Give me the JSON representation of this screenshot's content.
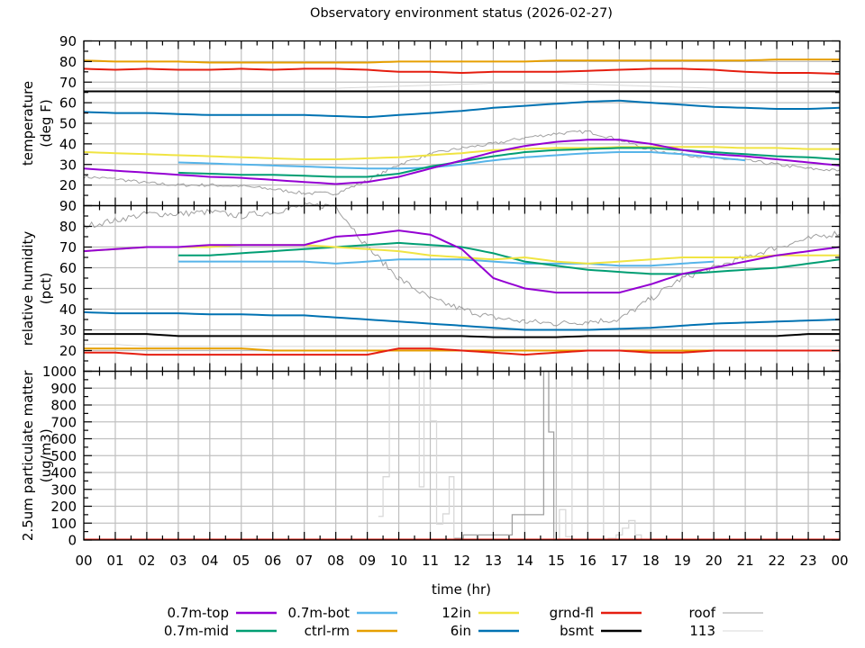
{
  "chart_data": {
    "type": "line",
    "title": "Observatory environment status (2026-02-27)",
    "xlabel": "time (hr)",
    "x_ticks": [
      "00",
      "01",
      "02",
      "03",
      "04",
      "05",
      "06",
      "07",
      "08",
      "09",
      "10",
      "11",
      "12",
      "13",
      "14",
      "15",
      "16",
      "17",
      "18",
      "19",
      "20",
      "21",
      "22",
      "23",
      "00"
    ],
    "xlim": [
      0,
      24
    ],
    "grid": true,
    "legend_placement": "bottom",
    "colors": {
      "0.7m-top": "#9400d3",
      "0.7m-mid": "#009e73",
      "0.7m-bot": "#56b4e9",
      "ctrl-rm": "#e69f00",
      "12in": "#f0e442",
      "6in": "#0072b2",
      "grnd-fl": "#e51e10",
      "bsmt": "#000000",
      "roof": "#a0a0a0",
      "113": "#d8d8d8"
    },
    "legend": [
      [
        "0.7m-top",
        "0.7m-mid"
      ],
      [
        "0.7m-bot",
        "ctrl-rm"
      ],
      [
        "12in",
        "6in"
      ],
      [
        "grnd-fl",
        "bsmt"
      ],
      [
        "roof",
        "113"
      ]
    ],
    "panels": [
      {
        "ylabel": [
          "temperature",
          "(deg F)"
        ],
        "ylim": [
          10,
          90
        ],
        "y_ticks": [
          10,
          20,
          30,
          40,
          50,
          60,
          70,
          80,
          90
        ],
        "tick_labels": [
          "20",
          "30",
          "40",
          "50",
          "60",
          "70",
          "80",
          "90"
        ],
        "x": [
          0,
          1,
          2,
          3,
          4,
          5,
          6,
          7,
          8,
          9,
          10,
          11,
          12,
          13,
          14,
          15,
          16,
          17,
          18,
          19,
          20,
          21,
          22,
          23,
          24
        ],
        "series": [
          {
            "name": "113",
            "values": [
              67,
              67,
              67,
              67,
              67,
              67,
              67,
              67,
              67,
              67.5,
              68,
              68.5,
              69,
              69.5,
              69.5,
              69.5,
              69,
              68.5,
              68,
              67.5,
              67,
              67,
              67,
              67,
              67
            ]
          },
          {
            "name": "ctrl-rm",
            "values": [
              80.5,
              80,
              80,
              80,
              79.5,
              79.5,
              79.5,
              79.5,
              79.5,
              79.5,
              80,
              80,
              80,
              80,
              80,
              80.5,
              80.5,
              80.5,
              80.5,
              80.5,
              80.5,
              80.5,
              81,
              81,
              81
            ]
          },
          {
            "name": "grnd-fl",
            "values": [
              76.5,
              76,
              76.5,
              76,
              76,
              76.5,
              76,
              76.5,
              76.5,
              76,
              75,
              75,
              74.5,
              75,
              75,
              75,
              75.5,
              76,
              76.5,
              76.5,
              76,
              75,
              74.5,
              74.5,
              74
            ]
          },
          {
            "name": "bsmt",
            "values": [
              65.5,
              65.5,
              65.5,
              65.5,
              65.5,
              65.5,
              65.5,
              65.5,
              65.5,
              65.5,
              65.5,
              65.5,
              65.5,
              65.5,
              65.5,
              65.5,
              65.5,
              65.5,
              65.5,
              65.5,
              65.5,
              65.5,
              65.5,
              65.5,
              65.5
            ]
          },
          {
            "name": "6in",
            "values": [
              55.5,
              55,
              55,
              54.5,
              54,
              54,
              54,
              54,
              53.5,
              53,
              54,
              55,
              56,
              57.5,
              58.5,
              59.5,
              60.5,
              61,
              60,
              59,
              58,
              57.5,
              57,
              57,
              57.5
            ]
          },
          {
            "name": "roof",
            "values": [
              24,
              23,
              21,
              20,
              20,
              19.5,
              18,
              16,
              16,
              22,
              30,
              35,
              38,
              40,
              43,
              45,
              46,
              42,
              37,
              35,
              33,
              32,
              30,
              28,
              27
            ]
          },
          {
            "name": "12in",
            "values": [
              36,
              35.5,
              35,
              34.5,
              34,
              33.5,
              33,
              32.5,
              32.5,
              33,
              33.5,
              34.5,
              35.5,
              37,
              37.5,
              38,
              38,
              38.5,
              38.5,
              38.5,
              38.5,
              38,
              38,
              37.5,
              37.5
            ]
          },
          {
            "name": "0.7m-bot",
            "values": [
              null,
              null,
              null,
              31,
              30.5,
              30,
              29.5,
              29,
              28.5,
              28,
              28,
              28.5,
              30,
              32,
              33.5,
              34.5,
              35.5,
              36,
              36,
              35,
              33.5,
              32,
              null,
              null,
              null
            ]
          },
          {
            "name": "0.7m-mid",
            "values": [
              null,
              null,
              null,
              26,
              25.5,
              25,
              25,
              24.5,
              24,
              24,
              25.5,
              29,
              31.5,
              34,
              36,
              37,
              37.5,
              38,
              38,
              37,
              36,
              35,
              34,
              33.5,
              32.5
            ]
          },
          {
            "name": "0.7m-top",
            "values": [
              28,
              27,
              26,
              25,
              24,
              23.5,
              22.5,
              21.5,
              20.5,
              21.5,
              24,
              28,
              32,
              36,
              39,
              41,
              42,
              42,
              40,
              37,
              35,
              34,
              32.5,
              31,
              29.5
            ]
          }
        ]
      },
      {
        "ylabel": [
          "relative humidity",
          "(pct)"
        ],
        "ylim": [
          10,
          90
        ],
        "y_ticks": [
          10,
          20,
          30,
          40,
          50,
          60,
          70,
          80,
          90
        ],
        "tick_labels": [
          "20",
          "30",
          "40",
          "50",
          "60",
          "70",
          "80",
          "90"
        ],
        "x": [
          0,
          1,
          2,
          3,
          4,
          5,
          6,
          7,
          8,
          9,
          10,
          11,
          12,
          13,
          14,
          15,
          16,
          17,
          18,
          19,
          20,
          21,
          22,
          23,
          24
        ],
        "series": [
          {
            "name": "113",
            "values": [
              23,
              23,
              22,
              22,
              22,
              22,
              22,
              22,
              22,
              22,
              22,
              22,
              22,
              22,
              22,
              22,
              22,
              22,
              22,
              22,
              22,
              22,
              22,
              22,
              22
            ]
          },
          {
            "name": "ctrl-rm",
            "values": [
              21,
              21,
              21,
              21,
              21,
              21,
              20,
              20,
              20,
              20,
              20,
              20,
              20,
              20,
              20,
              20,
              20,
              20,
              20,
              20,
              20,
              20,
              20,
              20,
              20
            ]
          },
          {
            "name": "grnd-fl",
            "values": [
              19,
              19,
              18,
              18,
              18,
              18,
              18,
              18,
              18,
              18,
              21,
              21,
              20,
              19,
              18,
              19,
              20,
              20,
              19,
              19,
              20,
              20,
              20,
              20,
              20
            ]
          },
          {
            "name": "bsmt",
            "values": [
              28,
              28,
              28,
              27,
              27,
              27,
              27,
              27,
              27,
              27,
              27,
              27,
              27,
              26.5,
              26.5,
              26.5,
              27,
              27,
              27,
              27,
              27,
              27,
              27,
              28,
              28
            ]
          },
          {
            "name": "6in",
            "values": [
              38.5,
              38,
              38,
              38,
              37.5,
              37.5,
              37,
              37,
              36,
              35,
              34,
              33,
              32,
              31,
              30,
              30,
              30,
              30.5,
              31,
              32,
              33,
              33.5,
              34,
              34.5,
              35
            ]
          },
          {
            "name": "roof",
            "values": [
              80,
              83,
              86,
              86,
              87,
              85,
              87,
              90,
              90,
              70,
              55,
              45,
              40,
              36,
              34,
              33,
              34,
              35,
              45,
              55,
              60,
              65,
              70,
              74,
              77
            ]
          },
          {
            "name": "0.7m-bot",
            "values": [
              null,
              null,
              null,
              63,
              63,
              63,
              63,
              63,
              62,
              63,
              64,
              64,
              64,
              63,
              62,
              62,
              62,
              61,
              61,
              62,
              63,
              null,
              null,
              null,
              null
            ]
          },
          {
            "name": "0.7m-mid",
            "values": [
              null,
              null,
              null,
              66,
              66,
              67,
              68,
              69,
              70,
              71,
              72,
              71,
              70,
              67,
              63,
              61,
              59,
              58,
              57,
              57,
              58,
              59,
              60,
              62,
              64
            ]
          },
          {
            "name": "12in",
            "values": [
              68,
              69,
              70,
              70,
              70,
              71,
              71,
              71,
              70,
              69,
              68,
              66,
              65,
              64,
              65,
              63,
              62,
              63,
              64,
              65,
              65,
              65,
              66,
              66,
              66
            ]
          },
          {
            "name": "0.7m-top",
            "values": [
              68,
              69,
              70,
              70,
              71,
              71,
              71,
              71,
              75,
              76,
              78,
              76,
              69,
              55,
              50,
              48,
              48,
              48,
              52,
              57,
              60,
              63,
              66,
              68,
              70
            ]
          }
        ]
      },
      {
        "ylabel": [
          "2.5um particulate matter",
          "(ug/m3)"
        ],
        "ylim": [
          0,
          1000
        ],
        "y_ticks": [
          0,
          100,
          200,
          300,
          400,
          500,
          600,
          700,
          800,
          900,
          1000
        ],
        "tick_labels": [
          "0",
          "100",
          "200",
          "300",
          "400",
          "500",
          "600",
          "700",
          "800",
          "900",
          "1000"
        ],
        "step_series": [
          {
            "name": "roof",
            "x": [
              11.75,
              12.05,
              13.6,
              14.6,
              14.76,
              14.92,
              24
            ],
            "values": [
              10,
              30,
              150,
              1000,
              640,
              0,
              0
            ]
          },
          {
            "name": "113",
            "x": [
              9.35,
              9.5,
              9.7,
              10.65,
              10.8,
              11.0,
              11.2,
              11.4,
              11.6,
              11.75,
              15.1,
              15.3,
              15.5,
              16.5,
              16.65,
              16.9,
              17.1,
              17.3,
              17.5,
              17.7,
              24
            ],
            "values": [
              140,
              375,
              1000,
              315,
              1000,
              705,
              95,
              155,
              375,
              0,
              180,
              20,
              1000,
              0,
              10,
              30,
              70,
              115,
              30,
              0,
              0
            ]
          },
          {
            "name": "grnd-fl",
            "x": [
              0,
              24
            ],
            "values": [
              3,
              3
            ]
          }
        ]
      }
    ]
  }
}
